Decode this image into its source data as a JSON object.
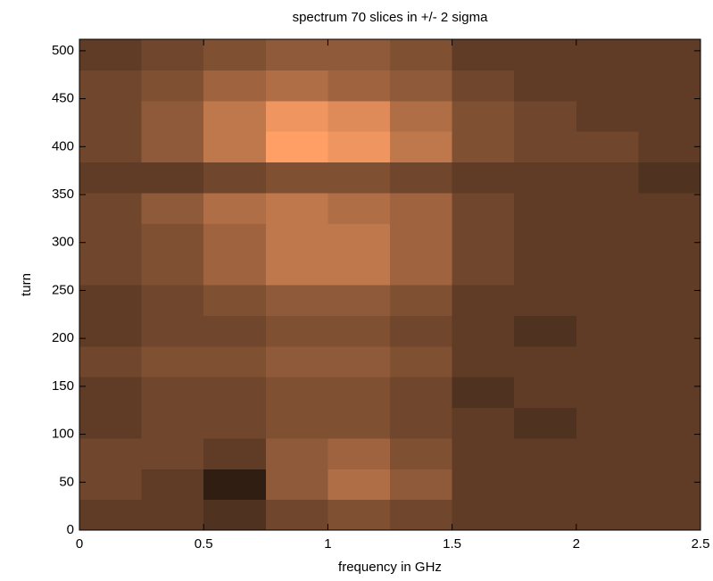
{
  "chart_data": {
    "type": "heatmap",
    "title": "spectrum 70 slices in +/- 2 sigma",
    "xlabel": "frequency in GHz",
    "ylabel": "turn",
    "colormap": "copper",
    "clim": [
      0,
      1
    ],
    "x": [
      0.125,
      0.375,
      0.625,
      0.875,
      1.125,
      1.375,
      1.625,
      1.875,
      2.125,
      2.375
    ],
    "y": [
      16,
      48,
      80,
      112,
      144,
      176,
      208,
      240,
      272,
      304,
      336,
      368,
      400,
      432,
      464,
      496
    ],
    "z": [
      [
        0.3,
        0.3,
        0.25,
        0.35,
        0.4,
        0.35,
        0.3,
        0.3,
        0.3,
        0.3
      ],
      [
        0.35,
        0.3,
        0.15,
        0.45,
        0.55,
        0.45,
        0.3,
        0.3,
        0.3,
        0.3
      ],
      [
        0.35,
        0.35,
        0.3,
        0.45,
        0.5,
        0.4,
        0.3,
        0.3,
        0.3,
        0.3
      ],
      [
        0.3,
        0.35,
        0.35,
        0.4,
        0.4,
        0.35,
        0.3,
        0.25,
        0.3,
        0.3
      ],
      [
        0.3,
        0.35,
        0.35,
        0.4,
        0.4,
        0.35,
        0.25,
        0.3,
        0.3,
        0.3
      ],
      [
        0.35,
        0.4,
        0.4,
        0.45,
        0.45,
        0.4,
        0.3,
        0.3,
        0.3,
        0.3
      ],
      [
        0.3,
        0.35,
        0.35,
        0.4,
        0.4,
        0.35,
        0.3,
        0.25,
        0.3,
        0.3
      ],
      [
        0.3,
        0.35,
        0.4,
        0.45,
        0.45,
        0.4,
        0.3,
        0.3,
        0.3,
        0.3
      ],
      [
        0.35,
        0.4,
        0.5,
        0.6,
        0.6,
        0.5,
        0.35,
        0.3,
        0.3,
        0.3
      ],
      [
        0.35,
        0.4,
        0.5,
        0.6,
        0.6,
        0.5,
        0.35,
        0.3,
        0.3,
        0.3
      ],
      [
        0.35,
        0.45,
        0.55,
        0.6,
        0.55,
        0.5,
        0.35,
        0.3,
        0.3,
        0.3
      ],
      [
        0.3,
        0.3,
        0.35,
        0.4,
        0.4,
        0.35,
        0.3,
        0.3,
        0.3,
        0.25
      ],
      [
        0.35,
        0.45,
        0.6,
        0.8,
        0.75,
        0.6,
        0.4,
        0.35,
        0.35,
        0.3
      ],
      [
        0.35,
        0.45,
        0.6,
        0.75,
        0.7,
        0.55,
        0.4,
        0.35,
        0.3,
        0.3
      ],
      [
        0.35,
        0.4,
        0.5,
        0.55,
        0.5,
        0.45,
        0.35,
        0.3,
        0.3,
        0.3
      ],
      [
        0.3,
        0.35,
        0.4,
        0.45,
        0.45,
        0.4,
        0.3,
        0.3,
        0.3,
        0.3
      ]
    ],
    "xlim": [
      0,
      2.5
    ],
    "xticks": [
      0,
      0.5,
      1,
      1.5,
      2,
      2.5
    ],
    "ylim": [
      0,
      512
    ],
    "yticks": [
      0,
      50,
      100,
      150,
      200,
      250,
      300,
      350,
      400,
      450,
      500
    ]
  }
}
